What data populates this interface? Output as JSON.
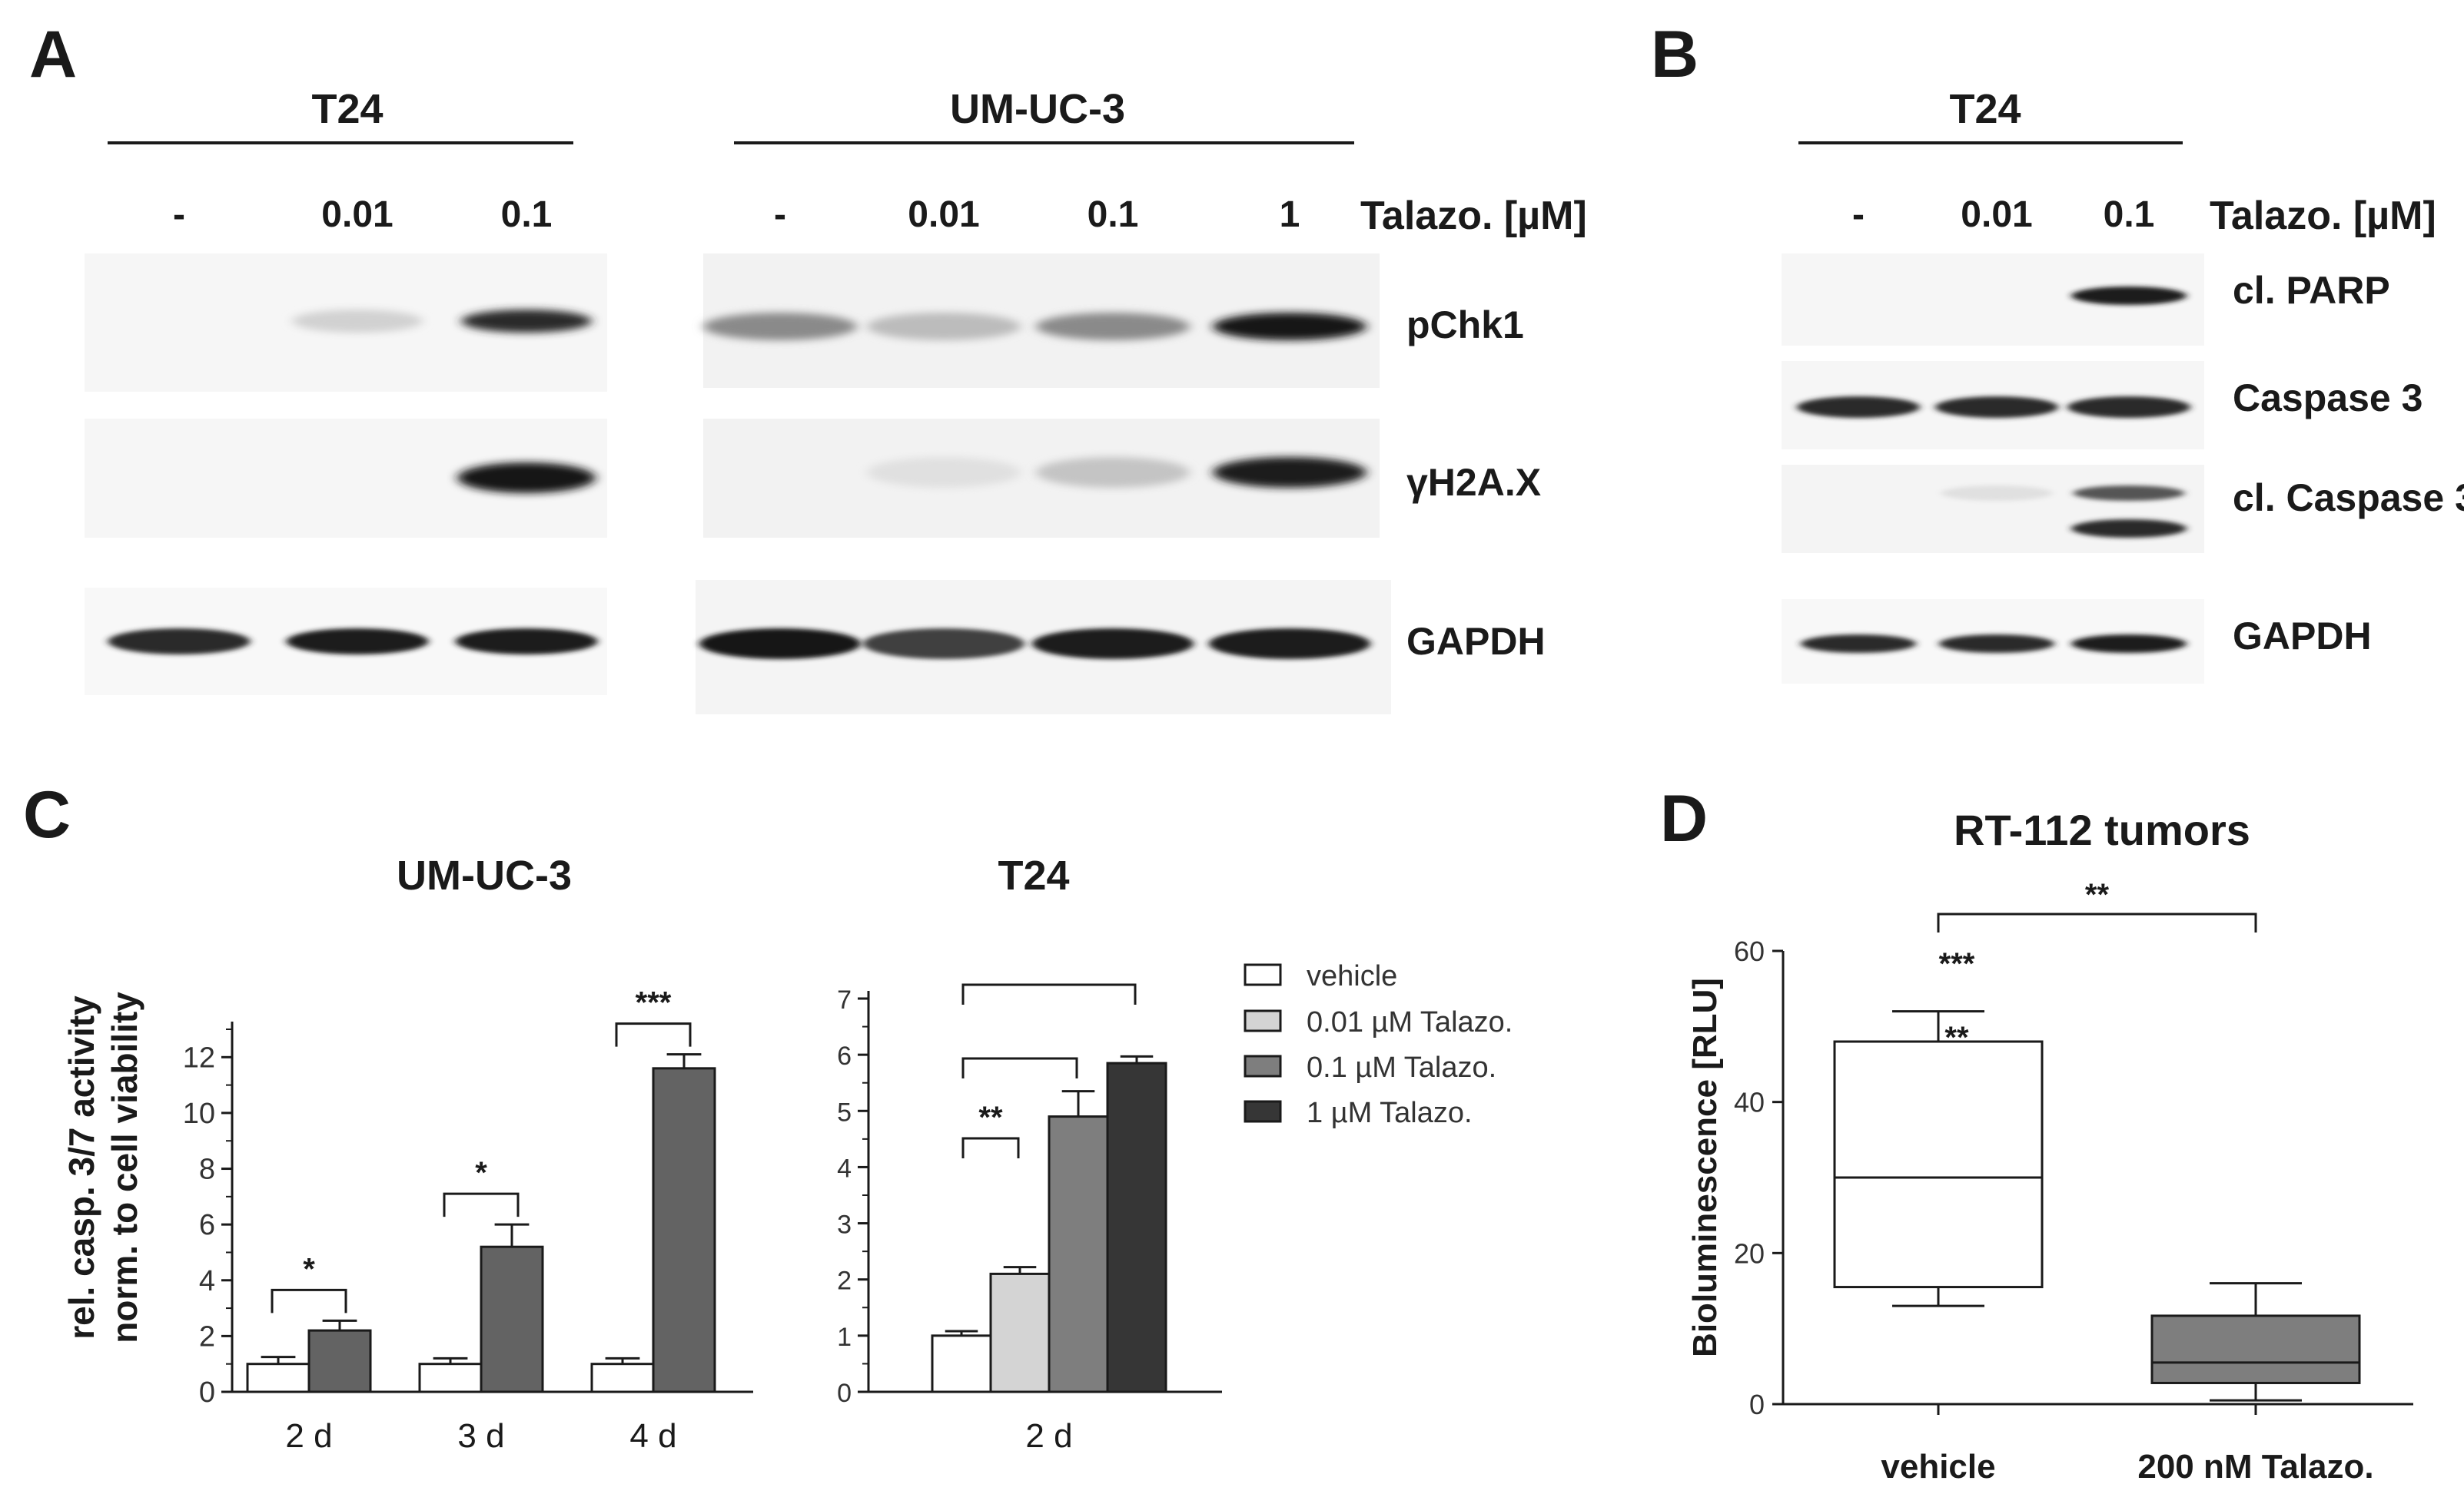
{
  "panel_letters": {
    "a": "A",
    "b": "B",
    "c": "C",
    "d": "D"
  },
  "colors": {
    "vehicle": "#ffffff",
    "c001": "#d4d4d4",
    "c01": "#7e7e7e",
    "c1": "#363636",
    "bar_gray": "#636363",
    "box_fill": "#7e7e7e",
    "ink": "#1a1a1a"
  },
  "panel_a": {
    "t24": {
      "title": "T24",
      "lanes": [
        "-",
        "0.01",
        "0.1"
      ],
      "blots": {
        "pchk1": [
          0.0,
          0.12,
          0.9
        ],
        "h2ax": [
          0.0,
          0.0,
          1.0
        ],
        "gapdh": [
          0.9,
          0.95,
          0.95
        ]
      }
    },
    "umuc3": {
      "title": "UM-UC-3",
      "lanes": [
        "-",
        "0.01",
        "0.1",
        "1"
      ],
      "blots": {
        "pchk1": [
          0.45,
          0.22,
          0.45,
          1.0
        ],
        "h2ax": [
          0.0,
          0.05,
          0.18,
          0.95
        ],
        "gapdh": [
          1.0,
          0.8,
          0.95,
          0.95
        ]
      }
    },
    "dose_label": "Talazo. [µM]",
    "row_labels": [
      "pChk1",
      "γH2A.X",
      "GAPDH"
    ]
  },
  "panel_b": {
    "title": "T24",
    "lanes": [
      "-",
      "0.01",
      "0.1"
    ],
    "dose_label": "Talazo. [µM]",
    "row_labels": [
      "cl. PARP",
      "Caspase 3",
      "cl. Caspase 3",
      "GAPDH"
    ],
    "blots": {
      "cl_parp": [
        0.0,
        0.0,
        0.95
      ],
      "caspase3": [
        0.9,
        0.9,
        0.9
      ],
      "cl_caspase3_upper": [
        0.0,
        0.05,
        0.7
      ],
      "cl_caspase3_lower": [
        0.0,
        0.0,
        0.9
      ],
      "gapdh": [
        0.9,
        0.9,
        0.95
      ]
    }
  },
  "chart_data": [
    {
      "type": "bar",
      "title": "UM-UC-3",
      "ylabel": "rel. casp. 3/7 activity\nnorm. to cell viability",
      "xlabel": "",
      "ylim": [
        0,
        13
      ],
      "yticks": [
        "0",
        "2",
        "4",
        "6",
        "8",
        "10",
        "12"
      ],
      "categories": [
        "2 d",
        "3 d",
        "4 d"
      ],
      "series": [
        {
          "name": "vehicle",
          "values": [
            1.0,
            1.0,
            1.0
          ],
          "errors": [
            0.25,
            0.2,
            0.2
          ]
        },
        {
          "name": "1 µM Talazo.",
          "values": [
            2.2,
            5.2,
            11.6
          ],
          "errors": [
            0.35,
            0.8,
            0.5
          ]
        }
      ],
      "significance": [
        {
          "category": "2 d",
          "label": "*"
        },
        {
          "category": "3 d",
          "label": "*"
        },
        {
          "category": "4 d",
          "label": "***"
        }
      ]
    },
    {
      "type": "bar",
      "title": "T24",
      "ylim": [
        0,
        7
      ],
      "yticks": [
        "0",
        "1",
        "2",
        "3",
        "4",
        "5",
        "6",
        "7"
      ],
      "categories": [
        "2 d"
      ],
      "series": [
        {
          "name": "vehicle",
          "values": [
            1.0
          ],
          "errors": [
            0.08
          ]
        },
        {
          "name": "0.01 µM Talazo.",
          "values": [
            2.1
          ],
          "errors": [
            0.12
          ]
        },
        {
          "name": "0.1 µM Talazo.",
          "values": [
            4.9
          ],
          "errors": [
            0.45
          ]
        },
        {
          "name": "1 µM Talazo.",
          "values": [
            5.85
          ],
          "errors": [
            0.12
          ]
        }
      ],
      "significance": [
        {
          "from": "vehicle",
          "to": "0.01 µM Talazo.",
          "label": "**"
        },
        {
          "from": "vehicle",
          "to": "0.1 µM Talazo.",
          "label": "**"
        },
        {
          "from": "vehicle",
          "to": "1 µM Talazo.",
          "label": "***"
        }
      ]
    },
    {
      "type": "box",
      "title": "RT-112 tumors",
      "ylabel": "Bioluminescence [RLU]",
      "ylim": [
        0,
        60
      ],
      "yticks": [
        "0",
        "20",
        "40",
        "60"
      ],
      "categories": [
        "vehicle",
        "200 nM Talazo."
      ],
      "boxes": [
        {
          "min": 13,
          "q1": 15.5,
          "median": 30,
          "q3": 48,
          "max": 52
        },
        {
          "min": 0.5,
          "q1": 2.8,
          "median": 5.5,
          "q3": 11.7,
          "max": 16
        }
      ],
      "significance": {
        "label": "**"
      }
    }
  ],
  "legend": {
    "entries": [
      "vehicle",
      "0.01 µM Talazo.",
      "0.1 µM Talazo.",
      "1 µM Talazo."
    ],
    "placement": "right"
  }
}
